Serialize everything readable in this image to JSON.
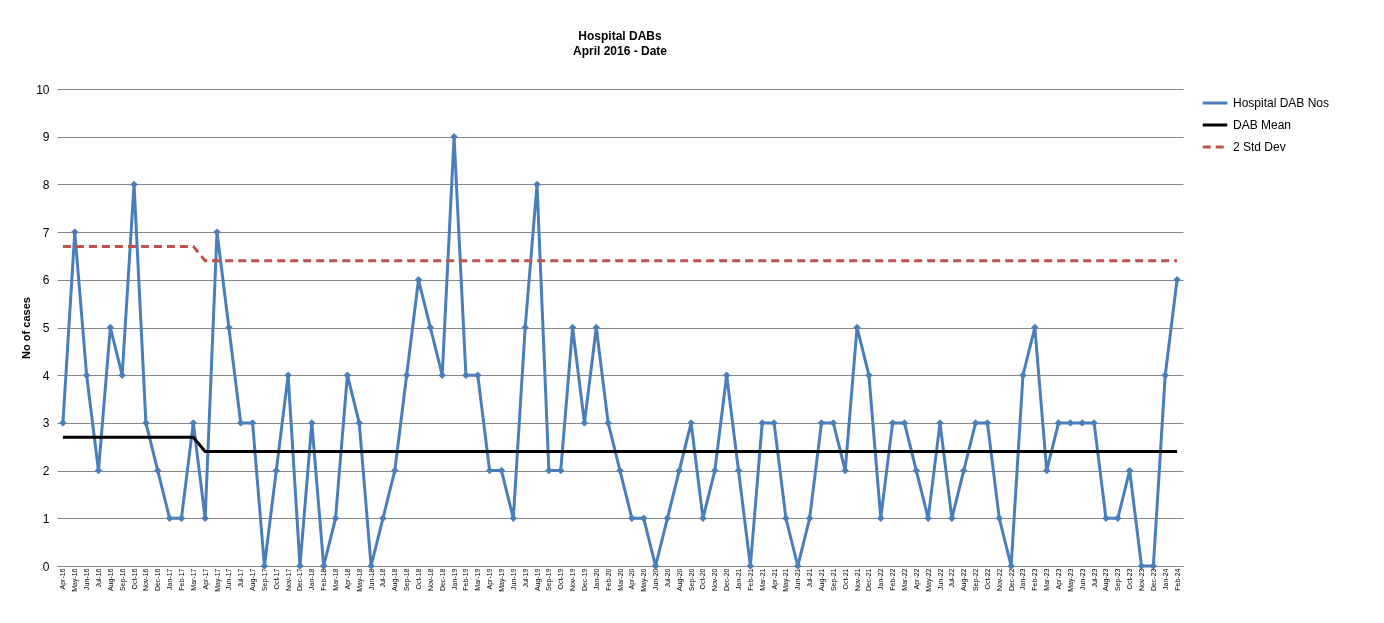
{
  "chart_data": {
    "type": "line",
    "title": "Hospital DABs",
    "subtitle": "April 2016  - Date",
    "ylabel": "No of cases",
    "categories": [
      "Apr-16",
      "May-16",
      "Jun-16",
      "Jul-16",
      "Aug-16",
      "Sep-16",
      "Oct-16",
      "Nov-16",
      "Dec-16",
      "Jan-17",
      "Feb-17",
      "Mar-17",
      "Apr-17",
      "May-17",
      "Jun-17",
      "Jul-17",
      "Aug-17",
      "Sep-17",
      "Oct-17",
      "Nov-17",
      "Dec-17",
      "Jan-18",
      "Feb-18",
      "Mar-18",
      "Apr-18",
      "May-18",
      "Jun-18",
      "Jul-18",
      "Aug-18",
      "Sep-18",
      "Oct-18",
      "Nov-18",
      "Dec-18",
      "Jan-19",
      "Feb-19",
      "Mar-19",
      "Apr-19",
      "May-19",
      "Jun-19",
      "Jul-19",
      "Aug-19",
      "Sep-19",
      "Oct-19",
      "Nov-19",
      "Dec-19",
      "Jan-20",
      "Feb-20",
      "Mar-20",
      "Apr-20",
      "May-20",
      "Jun-20",
      "Jul-20",
      "Aug-20",
      "Sep-20",
      "Oct-20",
      "Nov-20",
      "Dec-20",
      "Jan-21",
      "Feb-21",
      "Mar-21",
      "Apr-21",
      "May-21",
      "Jun-21",
      "Jul-21",
      "Aug-21",
      "Sep-21",
      "Oct-21",
      "Nov-21",
      "Dec-21",
      "Jan-22",
      "Feb-22",
      "Mar-22",
      "Apr-22",
      "May-22",
      "Jun-22",
      "Jul-22",
      "Aug-22",
      "Sep-22",
      "Oct-22",
      "Nov-22",
      "Dec-22",
      "Jan-23",
      "Feb-23",
      "Mar-23",
      "Apr-23",
      "May-23",
      "Jun-23",
      "Jul-23",
      "Aug-23",
      "Sep-23",
      "Oct-23",
      "Nov-23",
      "Dec-23",
      "Jan-24",
      "Feb-24"
    ],
    "series": [
      {
        "name": "Hospital DAB Nos",
        "color": "#4a7ebb",
        "marker": "diamond",
        "line_style": "solid",
        "values": [
          3,
          7,
          4,
          2,
          5,
          4,
          8,
          3,
          2,
          1,
          1,
          3,
          1,
          7,
          5,
          3,
          3,
          0,
          2,
          4,
          0,
          3,
          0,
          1,
          4,
          3,
          0,
          1,
          2,
          4,
          6,
          5,
          4,
          9,
          4,
          4,
          2,
          2,
          1,
          5,
          8,
          2,
          2,
          5,
          3,
          5,
          3,
          2,
          1,
          1,
          0,
          1,
          2,
          3,
          1,
          2,
          4,
          2,
          0,
          3,
          3,
          1,
          0,
          1,
          3,
          3,
          2,
          5,
          4,
          1,
          3,
          3,
          2,
          1,
          3,
          1,
          2,
          3,
          3,
          1,
          0,
          4,
          5,
          2,
          3,
          3,
          3,
          3,
          1,
          1,
          2,
          0,
          0,
          4,
          6
        ]
      },
      {
        "name": "DAB Mean",
        "color": "#000000",
        "marker": "none",
        "line_style": "solid",
        "values": [
          2.7,
          2.7,
          2.7,
          2.7,
          2.7,
          2.7,
          2.7,
          2.7,
          2.7,
          2.7,
          2.7,
          2.7,
          2.4,
          2.4,
          2.4,
          2.4,
          2.4,
          2.4,
          2.4,
          2.4,
          2.4,
          2.4,
          2.4,
          2.4,
          2.4,
          2.4,
          2.4,
          2.4,
          2.4,
          2.4,
          2.4,
          2.4,
          2.4,
          2.4,
          2.4,
          2.4,
          2.4,
          2.4,
          2.4,
          2.4,
          2.4,
          2.4,
          2.4,
          2.4,
          2.4,
          2.4,
          2.4,
          2.4,
          2.4,
          2.4,
          2.4,
          2.4,
          2.4,
          2.4,
          2.4,
          2.4,
          2.4,
          2.4,
          2.4,
          2.4,
          2.4,
          2.4,
          2.4,
          2.4,
          2.4,
          2.4,
          2.4,
          2.4,
          2.4,
          2.4,
          2.4,
          2.4,
          2.4,
          2.4,
          2.4,
          2.4,
          2.4,
          2.4,
          2.4,
          2.4,
          2.4,
          2.4,
          2.4,
          2.4,
          2.4,
          2.4,
          2.4,
          2.4,
          2.4,
          2.4,
          2.4,
          2.4,
          2.4,
          2.4,
          2.4
        ]
      },
      {
        "name": "2 Std Dev",
        "color": "#c0504d",
        "marker": "none",
        "line_style": "dashed",
        "values": [
          6.7,
          6.7,
          6.7,
          6.7,
          6.7,
          6.7,
          6.7,
          6.7,
          6.7,
          6.7,
          6.7,
          6.7,
          6.4,
          6.4,
          6.4,
          6.4,
          6.4,
          6.4,
          6.4,
          6.4,
          6.4,
          6.4,
          6.4,
          6.4,
          6.4,
          6.4,
          6.4,
          6.4,
          6.4,
          6.4,
          6.4,
          6.4,
          6.4,
          6.4,
          6.4,
          6.4,
          6.4,
          6.4,
          6.4,
          6.4,
          6.4,
          6.4,
          6.4,
          6.4,
          6.4,
          6.4,
          6.4,
          6.4,
          6.4,
          6.4,
          6.4,
          6.4,
          6.4,
          6.4,
          6.4,
          6.4,
          6.4,
          6.4,
          6.4,
          6.4,
          6.4,
          6.4,
          6.4,
          6.4,
          6.4,
          6.4,
          6.4,
          6.4,
          6.4,
          6.4,
          6.4,
          6.4,
          6.4,
          6.4,
          6.4,
          6.4,
          6.4,
          6.4,
          6.4,
          6.4,
          6.4,
          6.4,
          6.4,
          6.4,
          6.4,
          6.4,
          6.4,
          6.4,
          6.4,
          6.4,
          6.4,
          6.4,
          6.4,
          6.4,
          6.4
        ]
      }
    ],
    "ylim": [
      0,
      10
    ],
    "yticks": [
      0,
      1,
      2,
      3,
      4,
      5,
      6,
      7,
      8,
      9,
      10
    ],
    "grid": "y",
    "legend": "right"
  }
}
